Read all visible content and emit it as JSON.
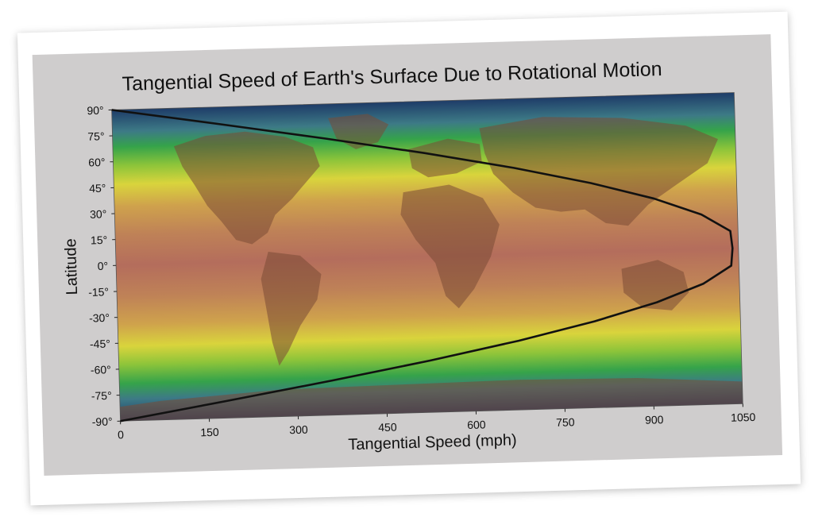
{
  "chart_data": {
    "type": "line",
    "title": "Tangential Speed of Earth's Surface Due to Rotational Motion",
    "xlabel": "Tangential Speed (mph)",
    "ylabel": "Latitude",
    "xlim": [
      0,
      1050
    ],
    "ylim": [
      -90,
      90
    ],
    "x_ticks": [
      "0",
      "150",
      "300",
      "450",
      "600",
      "750",
      "900",
      "1050"
    ],
    "y_ticks": [
      "90°",
      "75°",
      "60°",
      "45°",
      "30°",
      "15°",
      "0°",
      "-15°",
      "-30°",
      "-45°",
      "-60°",
      "-75°",
      "-90°"
    ],
    "x_tick_values": [
      0,
      150,
      300,
      450,
      600,
      750,
      900,
      1050
    ],
    "y_tick_values": [
      90,
      75,
      60,
      45,
      30,
      15,
      0,
      -15,
      -30,
      -45,
      -60,
      -75,
      -90
    ],
    "series": [
      {
        "x": [
          0,
          182,
          359,
          525,
          675,
          804,
          910,
          989,
          1037,
          1040,
          1037,
          989,
          910,
          804,
          675,
          525,
          359,
          182,
          0
        ],
        "y": [
          90,
          80,
          70,
          60,
          50,
          40,
          30,
          20,
          10,
          0,
          -10,
          -20,
          -30,
          -40,
          -50,
          -60,
          -70,
          -80,
          -90
        ]
      }
    ],
    "background": "world map colored by latitude bands",
    "grid": false,
    "colors": {
      "line": "#111111",
      "equator_band": "#b26e5a",
      "mid_band": "#c99a4e",
      "yellow_band": "#d6cf3c",
      "green_band": "#3aa63a",
      "polar_band": "#1f3f66",
      "land": "#7a4a35"
    }
  }
}
